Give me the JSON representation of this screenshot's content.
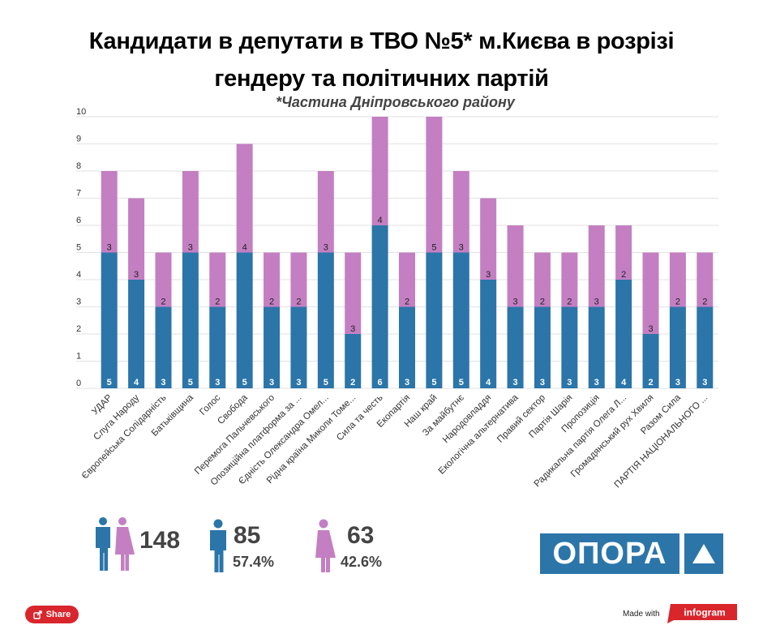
{
  "title_line1": "Кандидати в депутати в ТВО №5* м.Києва в розрізі",
  "title_line2": "гендеру та політичних партій",
  "subtitle": "*Частина Дніпровського району",
  "colors": {
    "male": "#2b75a9",
    "female": "#c37fc2",
    "grid": "#e2e2e2",
    "brand": "#2b75a9",
    "share": "#d8262c"
  },
  "chart_data": {
    "type": "bar",
    "stacked": true,
    "ylim": [
      0,
      10
    ],
    "yticks": [
      0,
      1,
      2,
      3,
      4,
      5,
      6,
      7,
      8,
      9,
      10
    ],
    "grid": true,
    "categories": [
      "УДАР",
      "Слуга Народу",
      "Європейська Солідарність",
      "Батьківщина",
      "Голос",
      "Свобода",
      "Перемога Пальчевського",
      "Опозиційна платформа за ...",
      "Єдність Олександра Омел...",
      "Рідна країна Миколи Томе...",
      "Сила та честь",
      "Екопартія",
      "Наш край",
      "За майбутнє",
      "Народовладдя",
      "Екологічна альтернатива",
      "Правий сектор",
      "Партія Шарія",
      "Пропозиція",
      "Радикальна партія Олега Л...",
      "Громадянський рух Хвиля",
      "Разом Сила",
      "ПАРТІЯ НАЦІОНАЛЬНОГО ..."
    ],
    "series": [
      {
        "key": "male",
        "values": [
          5,
          4,
          3,
          5,
          3,
          5,
          3,
          3,
          5,
          2,
          6,
          3,
          5,
          5,
          4,
          3,
          3,
          3,
          3,
          4,
          2,
          3,
          3
        ]
      },
      {
        "key": "female",
        "values": [
          3,
          3,
          2,
          3,
          2,
          4,
          2,
          2,
          3,
          3,
          4,
          2,
          5,
          3,
          3,
          3,
          2,
          2,
          3,
          2,
          3,
          2,
          2
        ]
      }
    ]
  },
  "stats": {
    "total": "148",
    "male_count": "85",
    "male_pct": "57.4%",
    "female_count": "63",
    "female_pct": "42.6%"
  },
  "logo": {
    "text": "ОПОРА"
  },
  "footer": {
    "share_label": "Share",
    "made_with": "Made with",
    "infogram": "infogram"
  },
  "icons": {
    "male": "man-icon",
    "female": "woman-icon",
    "share": "share-icon",
    "logo": "triangle-icon"
  }
}
